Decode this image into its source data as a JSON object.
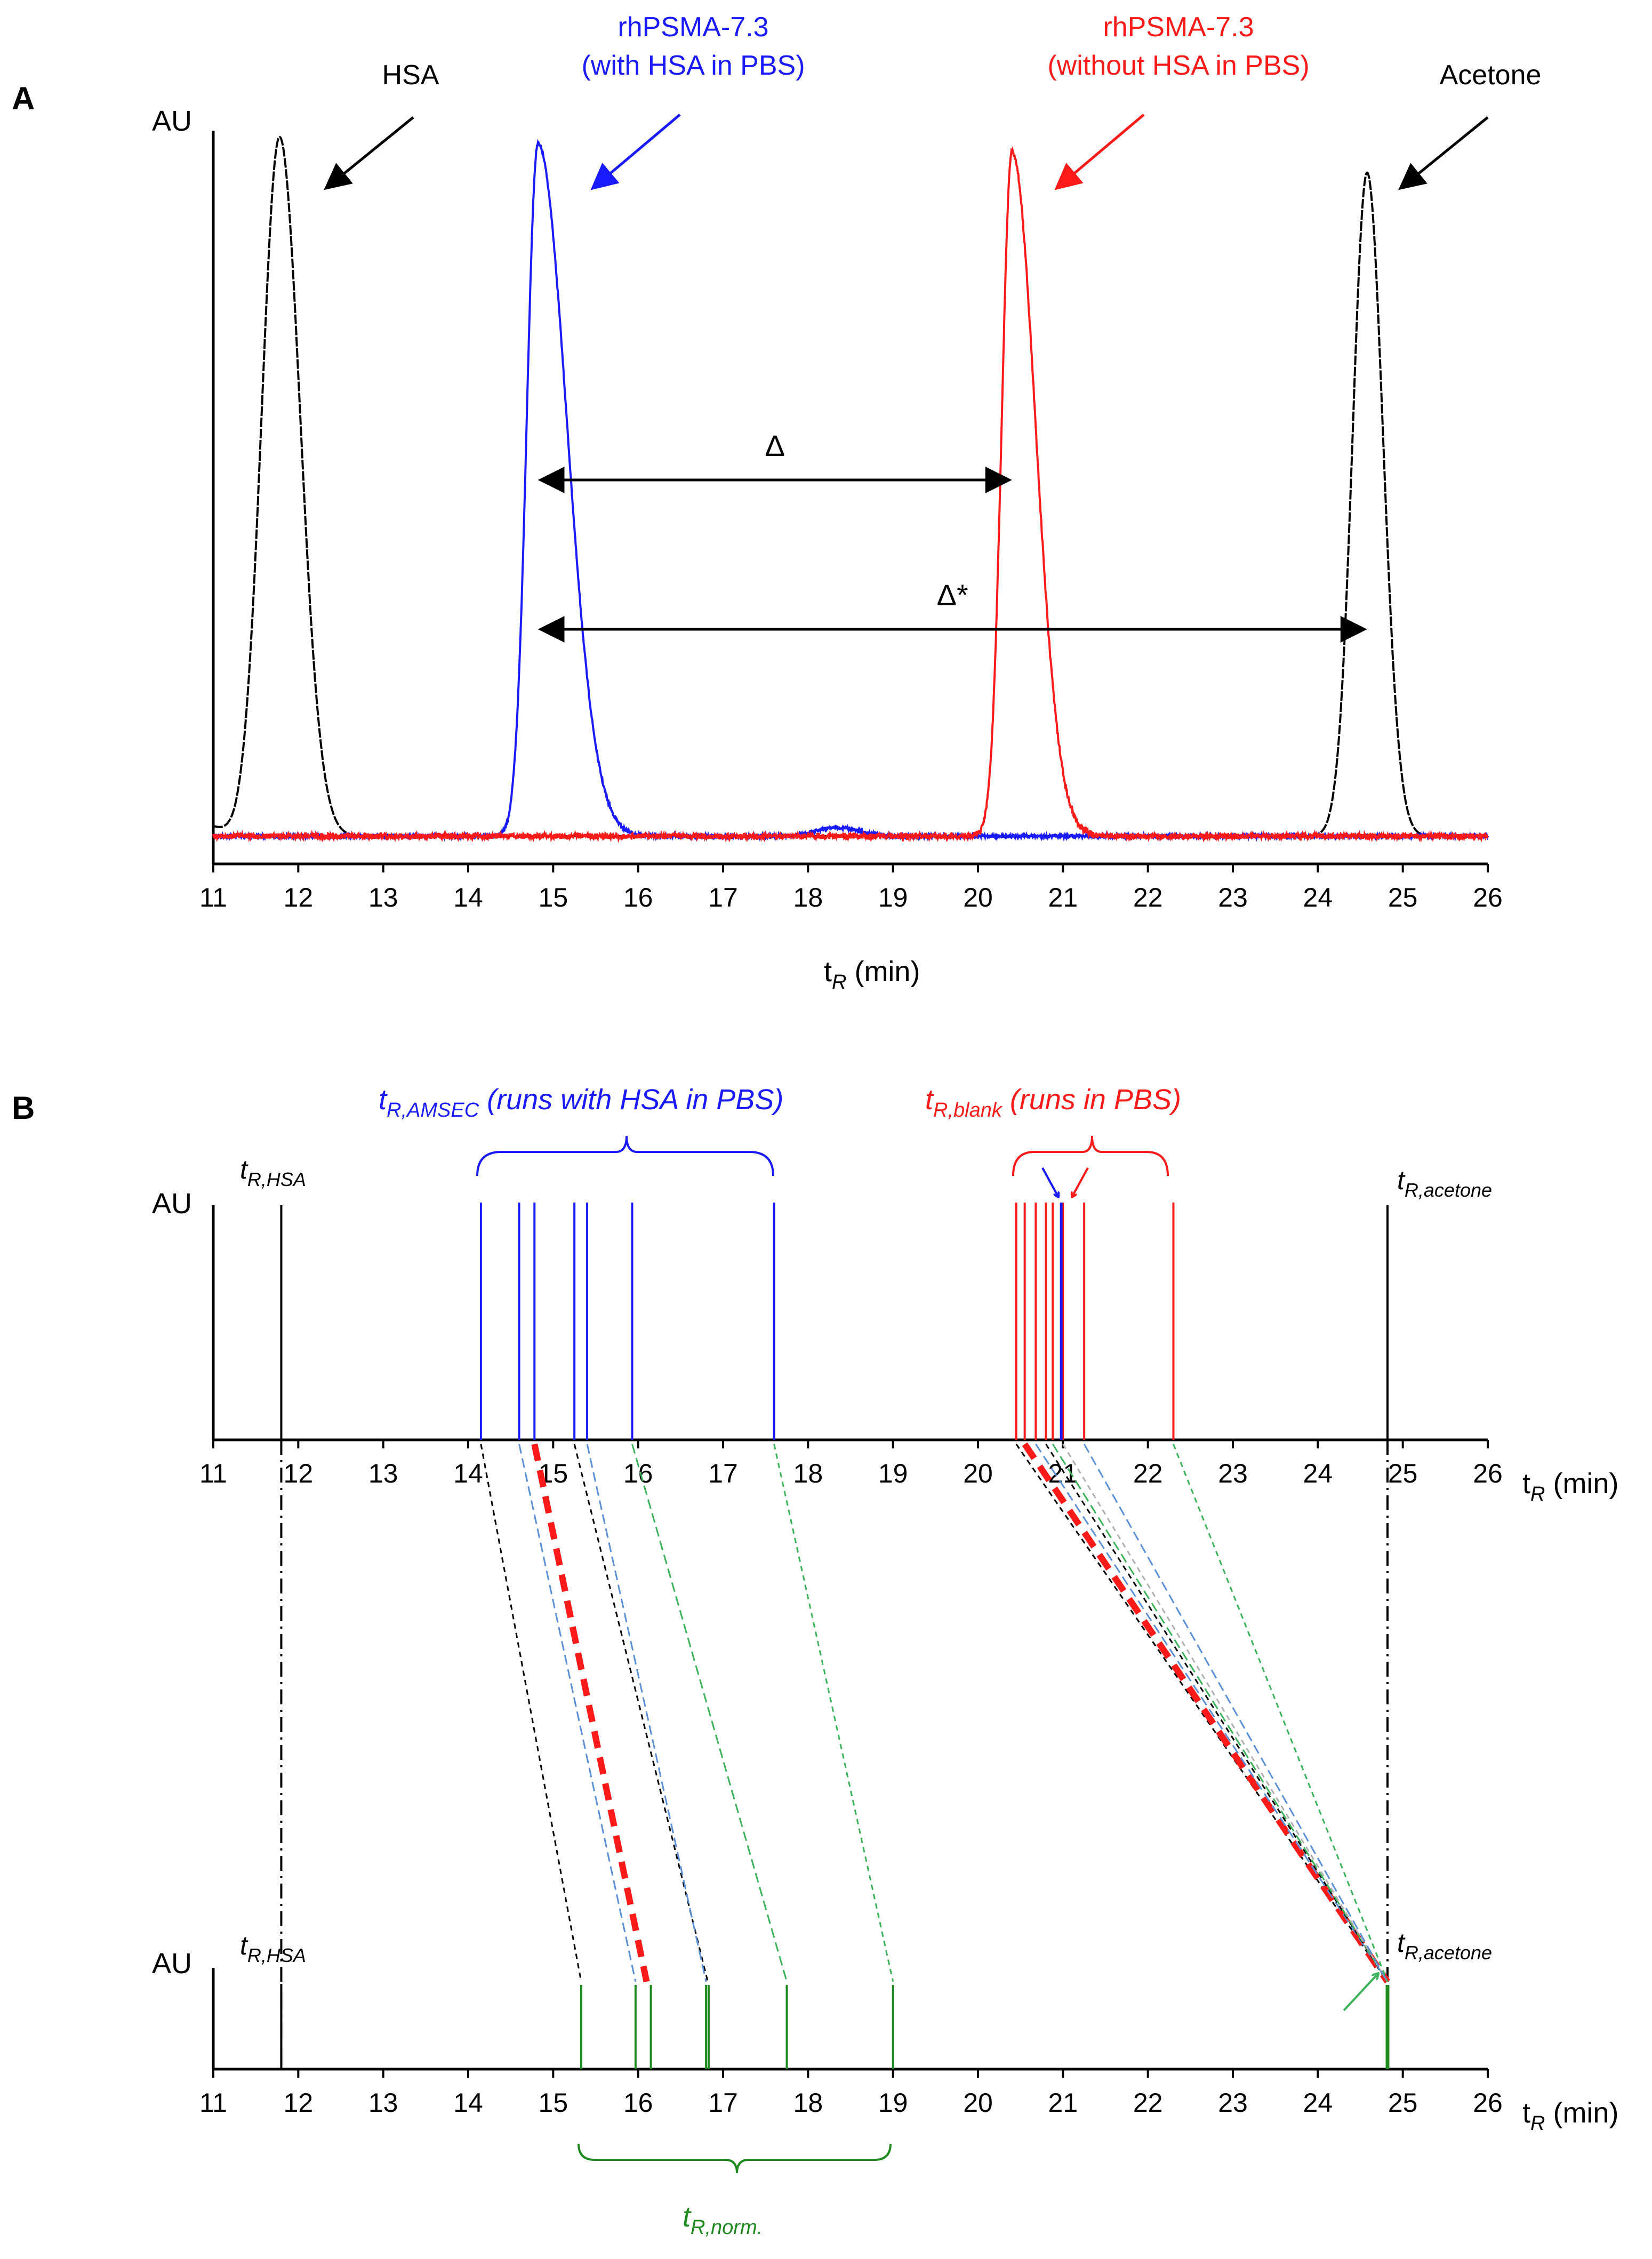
{
  "colors": {
    "black": "#000000",
    "blue": "#1a1aff",
    "red": "#ff1a1a",
    "green": "#1f8a1f",
    "dash_blue": "#5b8fd6",
    "dash_green": "#3cb35a",
    "dash_gray": "#b0b0b0"
  },
  "chart_data": [
    {
      "panel": "A",
      "type": "line",
      "title": "A",
      "ylabel": "AU",
      "xlabel_main": "t",
      "xlabel_sub": "R",
      "xlabel_unit": " (min)",
      "xlim": [
        11,
        26
      ],
      "xticks": [
        "11",
        "12",
        "13",
        "14",
        "15",
        "16",
        "17",
        "18",
        "19",
        "20",
        "21",
        "22",
        "23",
        "24",
        "25",
        "26"
      ],
      "series": [
        {
          "name": "HSA / Acetone reference",
          "color": "black",
          "peaks": [
            {
              "tR": 11.78,
              "height": 0.98,
              "sigma": 0.21,
              "tail": 1.15
            },
            {
              "tR": 24.58,
              "height": 0.93,
              "sigma": 0.17,
              "tail": 1.1
            }
          ]
        },
        {
          "name": "rhPSMA-7.3 (with HSA in PBS)",
          "color": "blue",
          "peaks": [
            {
              "tR": 14.82,
              "height": 0.97,
              "sigma": 0.13,
              "tail": 2.6
            },
            {
              "tR": 18.35,
              "height": 0.012,
              "sigma": 0.25,
              "tail": 1
            }
          ]
        },
        {
          "name": "rhPSMA-7.3 (without HSA in PBS)",
          "color": "red",
          "peaks": [
            {
              "tR": 20.4,
              "height": 0.96,
              "sigma": 0.12,
              "tail": 2.3
            }
          ]
        }
      ],
      "labels": {
        "hsa": "HSA",
        "blue_line1": "rhPSMA-7.3",
        "blue_line2": "(with HSA in PBS)",
        "red_line1": "rhPSMA-7.3",
        "red_line2": "(without HSA in PBS)",
        "acetone": "Acetone",
        "delta": "Δ",
        "delta_star": "Δ*"
      },
      "annotations": {
        "delta": {
          "from": 14.82,
          "to": 20.4
        },
        "delta_star": {
          "from": 14.82,
          "to": 24.58
        }
      }
    },
    {
      "panel": "B",
      "type": "line",
      "title": "B",
      "ylabel": "AU",
      "xlim": [
        11,
        26
      ],
      "xticks": [
        "11",
        "12",
        "13",
        "14",
        "15",
        "16",
        "17",
        "18",
        "19",
        "20",
        "21",
        "22",
        "23",
        "24",
        "25",
        "26"
      ],
      "xlabel_main": "t",
      "xlabel_sub": "R",
      "xlabel_unit": " (min)",
      "tR_HSA": 11.8,
      "tR_acetone": 24.82,
      "raw_blue": [
        14.15,
        14.6,
        14.78,
        15.25,
        15.4,
        15.93,
        17.6
      ],
      "raw_red": [
        20.45,
        20.55,
        20.68,
        20.8,
        20.88,
        21.0,
        21.25,
        22.3
      ],
      "raw_blue_marked": 20.98,
      "normalized_green": [
        15.33,
        15.97,
        16.15,
        16.8,
        16.83,
        17.75,
        19.0,
        24.82
      ],
      "connectors": [
        {
          "from": 14.15,
          "to": 15.33,
          "color": "black",
          "style": "short"
        },
        {
          "from": 14.6,
          "to": 15.97,
          "color": "dash_blue",
          "style": "long"
        },
        {
          "from": 14.78,
          "to": 16.1,
          "color": "red",
          "style": "bold"
        },
        {
          "from": 15.25,
          "to": 16.82,
          "color": "black",
          "style": "short"
        },
        {
          "from": 15.4,
          "to": 16.8,
          "color": "dash_blue",
          "style": "long"
        },
        {
          "from": 15.93,
          "to": 17.75,
          "color": "dash_green",
          "style": "long"
        },
        {
          "from": 17.6,
          "to": 19.0,
          "color": "dash_green",
          "style": "short"
        },
        {
          "from": 20.45,
          "to": 24.82,
          "color": "black",
          "style": "short"
        },
        {
          "from": 20.55,
          "to": 24.82,
          "color": "red",
          "style": "bold"
        },
        {
          "from": 20.68,
          "to": 24.82,
          "color": "dash_blue",
          "style": "long"
        },
        {
          "from": 20.8,
          "to": 24.82,
          "color": "black",
          "style": "short"
        },
        {
          "from": 20.88,
          "to": 24.82,
          "color": "dash_green",
          "style": "long"
        },
        {
          "from": 21.0,
          "to": 24.82,
          "color": "dash_gray",
          "style": "short"
        },
        {
          "from": 21.25,
          "to": 24.82,
          "color": "dash_blue",
          "style": "long"
        },
        {
          "from": 22.3,
          "to": 24.82,
          "color": "dash_green",
          "style": "short"
        }
      ],
      "labels": {
        "amsec_t": "t",
        "amsec_sub": "R,AMSEC",
        "amsec_desc": " (runs with HSA in PBS)",
        "blank_t": "t",
        "blank_sub": "R,blank",
        "blank_desc": " (runs in PBS)",
        "hsa_t": "t",
        "hsa_sub": "R,HSA",
        "acetone_t": "t",
        "acetone_sub": "R,acetone",
        "norm_t": "t",
        "norm_sub": "R,norm."
      }
    }
  ]
}
